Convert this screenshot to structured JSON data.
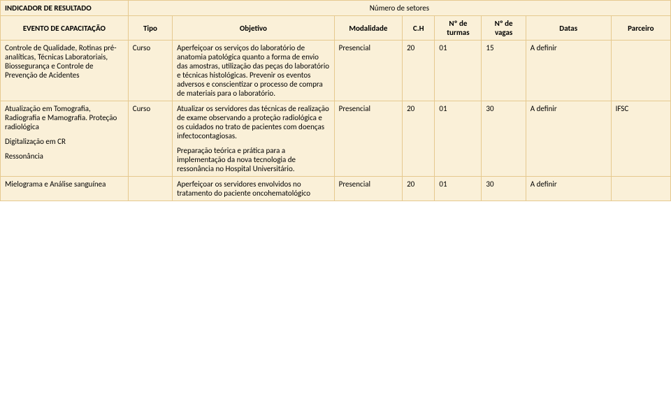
{
  "colors": {
    "cell_bg": "#faf0d8",
    "border": "#e6c98f",
    "text": "#000000"
  },
  "typography": {
    "font_family": "Calibri, Arial, sans-serif",
    "font_size_pt": 11
  },
  "header": {
    "indicator_label": "INDICADOR DE RESULTADO",
    "indicator_value": "Número de setores",
    "columns": {
      "evento": "EVENTO DE CAPACITAÇÃO",
      "tipo": "Tipo",
      "objetivo": "Objetivo",
      "modalidade": "Modalidade",
      "ch": "C.H",
      "turmas": "Nº de turmas",
      "vagas": "Nº de vagas",
      "datas": "Datas",
      "parceiro": "Parceiro"
    }
  },
  "rows": [
    {
      "evento": "Controle de Qualidade, Rotinas pré-analíticas, Técnicas Laboratoriais, Biossegurança e Controle de Prevenção de Acidentes",
      "tipo": "Curso",
      "objetivo": "Aperfeiçoar os serviços do laboratório de anatomia patológica quanto a forma de envio das amostras, utilização das peças do laboratório e técnicas histológicas. Prevenir os eventos adversos e conscientizar o processo de compra de materiais para o laboratório.",
      "modalidade": "Presencial",
      "ch": "20",
      "turmas": "01",
      "vagas": "15",
      "datas": "A definir",
      "parceiro": ""
    },
    {
      "evento": "Atualização em Tomografia, Radiografia e Mamografia. Proteção radiológica",
      "evento_p2": "Digitalização em CR",
      "evento_p3": "Ressonância",
      "tipo": "Curso",
      "objetivo": "Atualizar os servidores das técnicas de realização de exame observando a proteção radiológica e os cuidados no trato de pacientes com doenças infectocontagiosas.",
      "objetivo_p2": "Preparação teórica e prática para a implementação da nova tecnologia de ressonância no Hospital Universitário.",
      "modalidade": "Presencial",
      "ch": "20",
      "turmas": "01",
      "vagas": "30",
      "datas": "A definir",
      "parceiro": "IFSC"
    },
    {
      "evento": "Mielograma e Análise sanguínea",
      "tipo": "",
      "objetivo": "Aperfeiçoar os servidores envolvidos no tratamento do paciente oncohematológico",
      "modalidade": "Presencial",
      "ch": "20",
      "turmas": "01",
      "vagas": "30",
      "datas": "A definir",
      "parceiro": ""
    }
  ]
}
